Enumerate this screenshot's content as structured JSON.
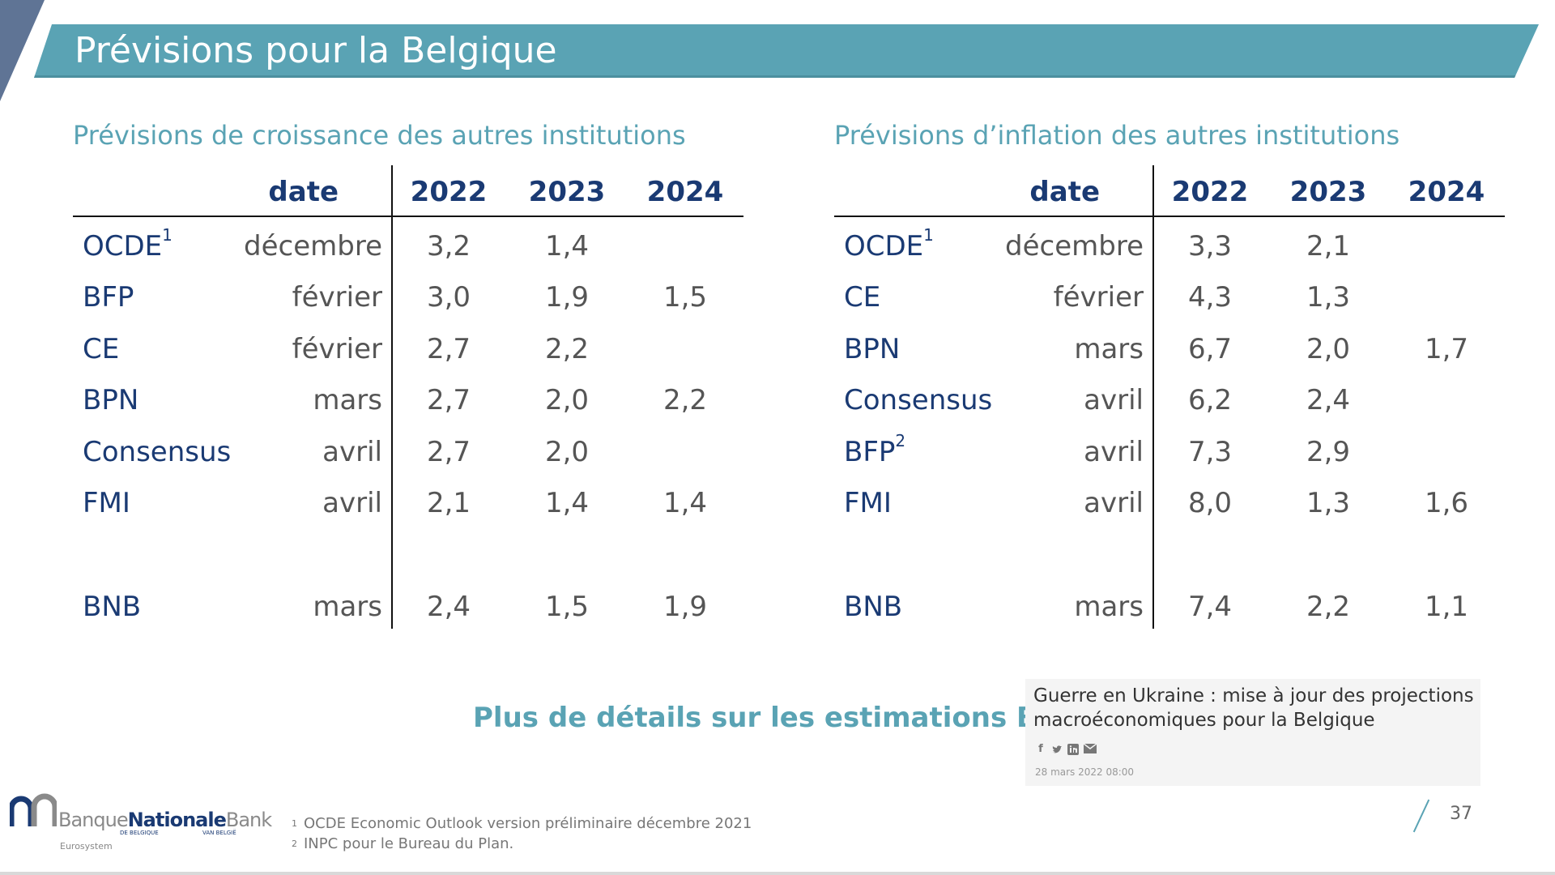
{
  "slide": {
    "title": "Prévisions pour la Belgique",
    "page_number": "37",
    "details_link": "Plus de détails sur les estimations BNB"
  },
  "growth": {
    "title": "Prévisions de croissance des autres institutions",
    "headers": {
      "date": "date",
      "y1": "2022",
      "y2": "2023",
      "y3": "2024"
    },
    "rows": [
      {
        "inst": "OCDE",
        "sup": "1",
        "date": "décembre",
        "v1": "3,2",
        "v2": "1,4",
        "v3": ""
      },
      {
        "inst": "BFP",
        "sup": "",
        "date": "février",
        "v1": "3,0",
        "v2": "1,9",
        "v3": "1,5"
      },
      {
        "inst": "CE",
        "sup": "",
        "date": "février",
        "v1": "2,7",
        "v2": "2,2",
        "v3": ""
      },
      {
        "inst": "BPN",
        "sup": "",
        "date": "mars",
        "v1": "2,7",
        "v2": "2,0",
        "v3": "2,2"
      },
      {
        "inst": "Consensus",
        "sup": "",
        "date": "avril",
        "v1": "2,7",
        "v2": "2,0",
        "v3": ""
      },
      {
        "inst": "FMI",
        "sup": "",
        "date": "avril",
        "v1": "2,1",
        "v2": "1,4",
        "v3": "1,4"
      },
      {
        "inst": "BNB",
        "sup": "",
        "date": "mars",
        "v1": "2,4",
        "v2": "1,5",
        "v3": "1,9"
      }
    ]
  },
  "inflation": {
    "title": "Prévisions d’inflation des autres institutions",
    "headers": {
      "date": "date",
      "y1": "2022",
      "y2": "2023",
      "y3": "2024"
    },
    "rows": [
      {
        "inst": "OCDE",
        "sup": "1",
        "date": "décembre",
        "v1": "3,3",
        "v2": "2,1",
        "v3": ""
      },
      {
        "inst": "CE",
        "sup": "",
        "date": "février",
        "v1": "4,3",
        "v2": "1,3",
        "v3": ""
      },
      {
        "inst": "BPN",
        "sup": "",
        "date": "mars",
        "v1": "6,7",
        "v2": "2,0",
        "v3": "1,7"
      },
      {
        "inst": "Consensus",
        "sup": "",
        "date": "avril",
        "v1": "6,2",
        "v2": "2,4",
        "v3": ""
      },
      {
        "inst": "BFP",
        "sup": "2",
        "date": "avril",
        "v1": "7,3",
        "v2": "2,9",
        "v3": ""
      },
      {
        "inst": "FMI",
        "sup": "",
        "date": "avril",
        "v1": "8,0",
        "v2": "1,3",
        "v3": "1,6"
      },
      {
        "inst": "BNB",
        "sup": "",
        "date": "mars",
        "v1": "7,4",
        "v2": "2,2",
        "v3": "1,1"
      }
    ]
  },
  "article_card": {
    "title": "Guerre en Ukraine : mise à jour des projections macroéconomiques pour la Belgique",
    "date": "28 mars 2022 08:00",
    "icons": [
      "facebook-icon",
      "twitter-icon",
      "linkedin-icon",
      "mail-icon"
    ]
  },
  "logo": {
    "part1": "Banque",
    "part2": "Nationale",
    "part3": "Bank",
    "sub1": "DE BELGIQUE",
    "sub2": "VAN BELGIË",
    "eurosystem": "Eurosystem"
  },
  "footnotes": [
    {
      "num": "1",
      "text": "OCDE Economic Outlook version préliminaire décembre 2021"
    },
    {
      "num": "2",
      "text": "INPC pour le Bureau du Plan."
    }
  ],
  "colors": {
    "accent": "#5aa3b4",
    "navy": "#1a3a73",
    "corner": "#5f7495"
  }
}
